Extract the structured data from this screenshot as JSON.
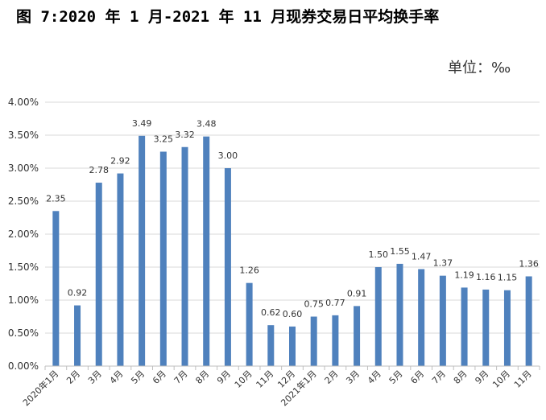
{
  "chart_data": {
    "type": "bar",
    "title": "图 7:2020 年 1 月-2021 年 11 月现券交易日平均换手率",
    "unit_label": "单位：‰",
    "categories": [
      "2020年1月",
      "2月",
      "3月",
      "4月",
      "5月",
      "6月",
      "7月",
      "8月",
      "9月",
      "10月",
      "11月",
      "12月",
      "2021年1月",
      "2月",
      "3月",
      "4月",
      "5月",
      "6月",
      "7月",
      "8月",
      "9月",
      "10月",
      "11月"
    ],
    "values": [
      2.35,
      0.92,
      2.78,
      2.92,
      3.49,
      3.25,
      3.32,
      3.48,
      3.0,
      1.26,
      0.62,
      0.6,
      0.75,
      0.77,
      0.91,
      1.5,
      1.55,
      1.47,
      1.37,
      1.19,
      1.16,
      1.15,
      1.36
    ],
    "data_labels": [
      "2.35",
      "0.92",
      "2.78",
      "2.92",
      "3.49",
      "3.25",
      "3.32",
      "3.48",
      "3.00",
      "1.26",
      "0.62",
      "0.60",
      "0.75",
      "0.77",
      "0.91",
      "1.50",
      "1.55",
      "1.47",
      "1.37",
      "1.19",
      "1.16",
      "1.15",
      "1.36"
    ],
    "yticks": [
      0,
      0.5,
      1,
      1.5,
      2,
      2.5,
      3,
      3.5,
      4
    ],
    "ytick_labels": [
      "0.00%",
      "0.50%",
      "1.00%",
      "1.50%",
      "2.00%",
      "2.50%",
      "3.00%",
      "3.50%",
      "4.00%"
    ],
    "ylim": [
      0,
      4
    ],
    "grid": true,
    "bar_color": "#4F81BD",
    "grid_color": "#D9D9D9",
    "axis_color": "#BFBFBF"
  }
}
